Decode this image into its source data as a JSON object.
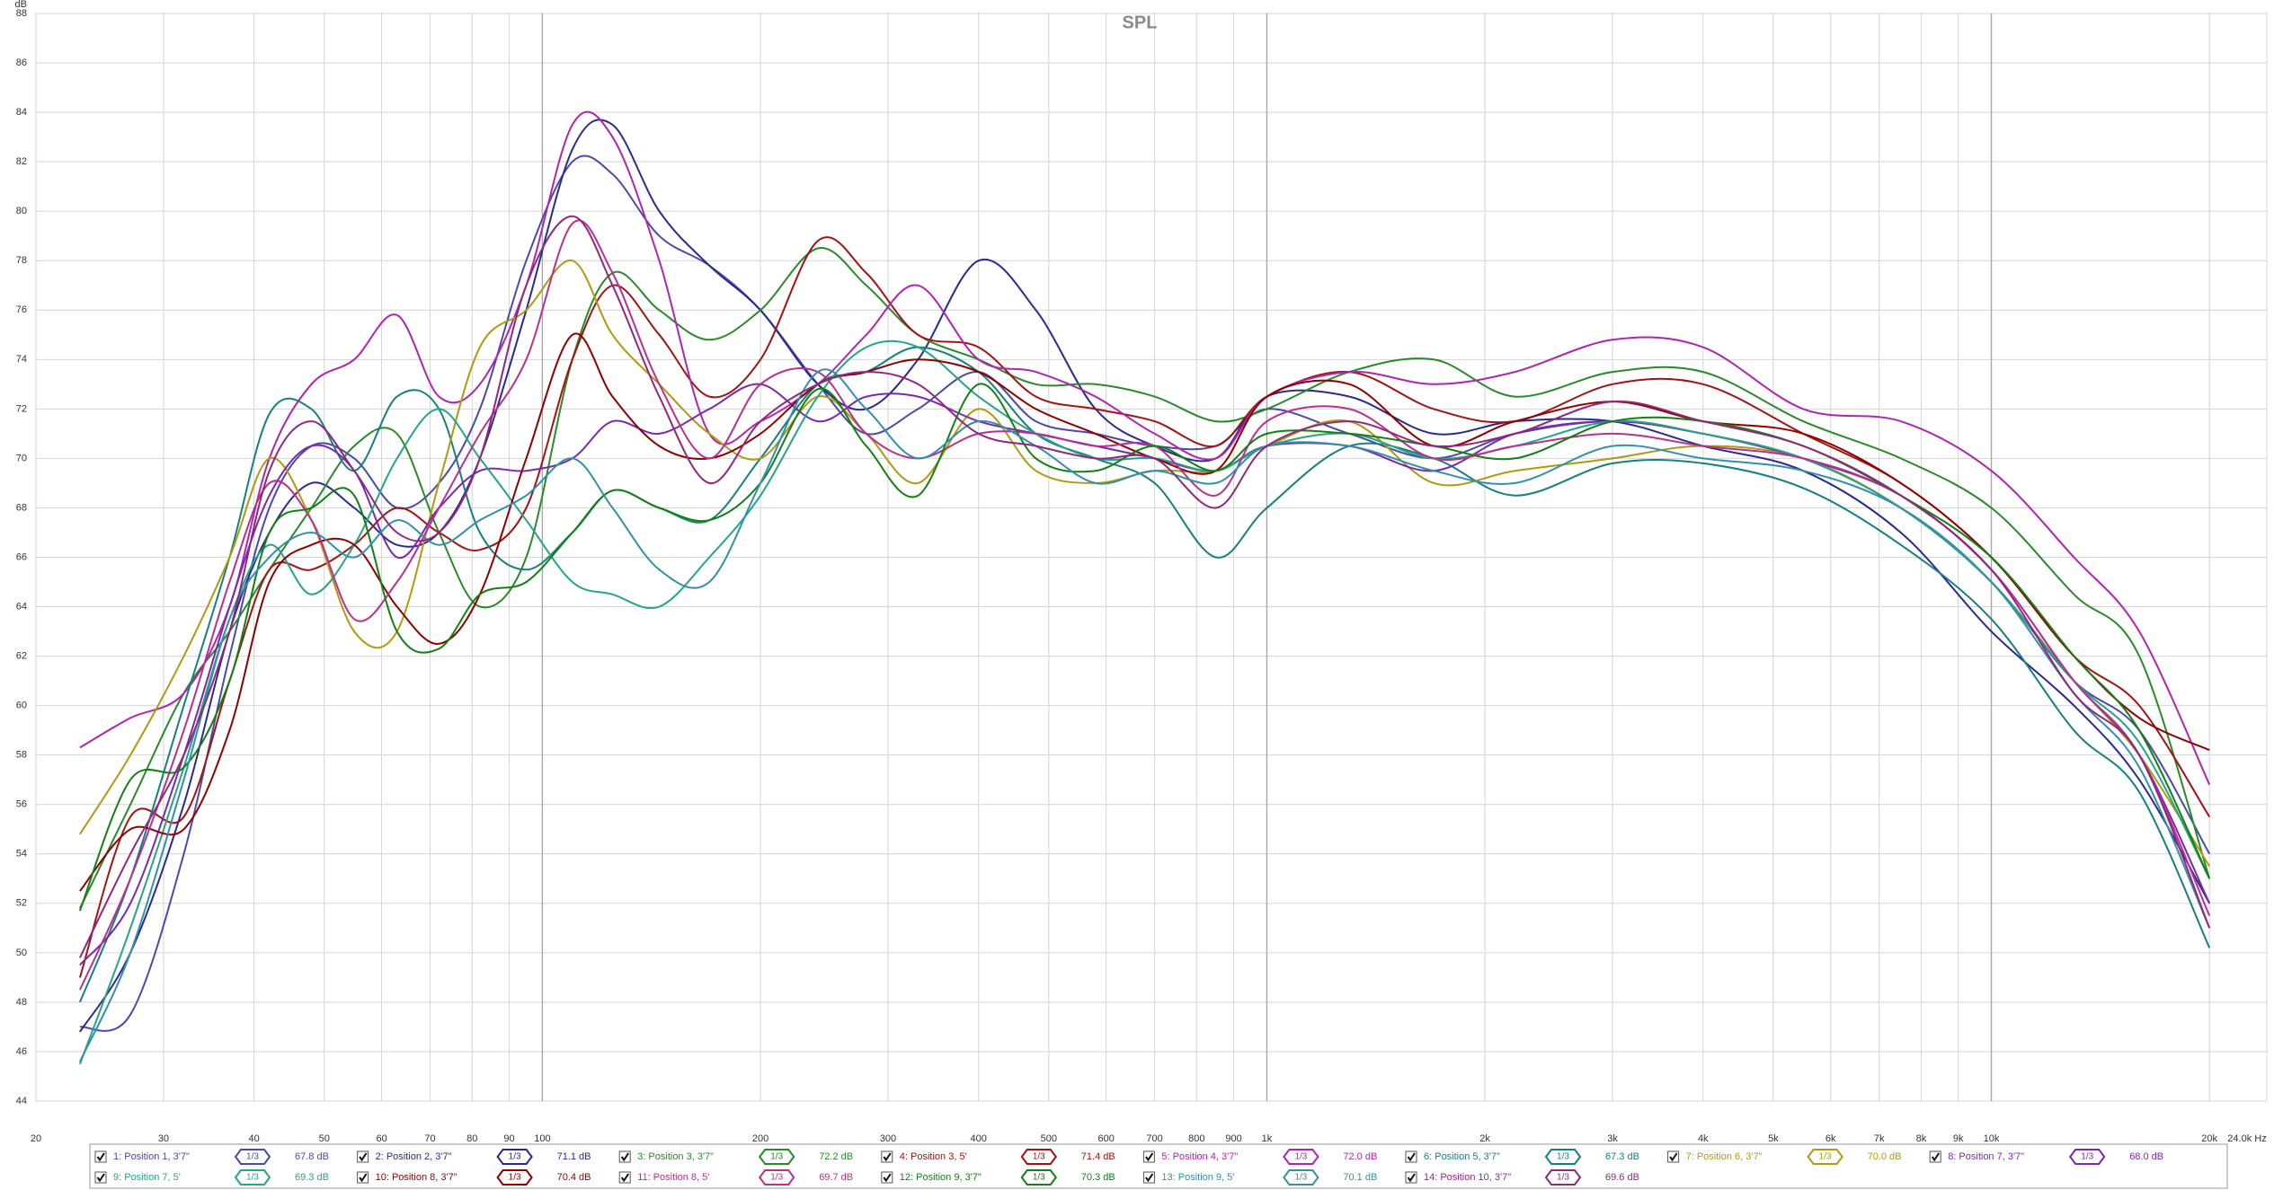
{
  "chart_data": {
    "type": "line",
    "title": "SPL",
    "y_label": "dB",
    "x_scale": "log",
    "grid": true,
    "xlim": [
      20,
      24000
    ],
    "ylim": [
      44,
      88
    ],
    "xticks": [
      20,
      30,
      40,
      50,
      60,
      70,
      80,
      90,
      100,
      200,
      300,
      400,
      500,
      600,
      700,
      800,
      900,
      {
        "value": 1000,
        "label": "1k"
      },
      {
        "value": 2000,
        "label": "2k"
      },
      {
        "value": 3000,
        "label": "3k"
      },
      {
        "value": 4000,
        "label": "4k"
      },
      {
        "value": 5000,
        "label": "5k"
      },
      {
        "value": 6000,
        "label": "6k"
      },
      {
        "value": 7000,
        "label": "7k"
      },
      {
        "value": 8000,
        "label": "8k"
      },
      {
        "value": 9000,
        "label": "9k"
      },
      {
        "value": 10000,
        "label": "10k"
      },
      {
        "value": 20000,
        "label": "20k"
      },
      {
        "value": 24000,
        "label": "24.0k Hz"
      }
    ],
    "yticks": [
      44,
      46,
      48,
      50,
      52,
      54,
      56,
      58,
      60,
      62,
      64,
      66,
      68,
      70,
      72,
      74,
      76,
      78,
      80,
      82,
      84,
      86,
      88
    ],
    "x": [
      23,
      27,
      32,
      37,
      42,
      48,
      55,
      63,
      72,
      82,
      95,
      110,
      125,
      145,
      170,
      200,
      240,
      280,
      330,
      400,
      480,
      580,
      700,
      850,
      1000,
      1300,
      1700,
      2200,
      3000,
      4000,
      5500,
      7500,
      10000,
      13000,
      16000,
      20000
    ],
    "series": [
      {
        "name": "1: Position 1, 3'7\"",
        "color": "#4a4aa8",
        "smoothing": "1/3",
        "level": "67.8 dB",
        "values": [
          47,
          47.5,
          54,
          62,
          68,
          70.5,
          70,
          68,
          69,
          72,
          78,
          82,
          81.5,
          79,
          77.8,
          76,
          73,
          71,
          72,
          73.5,
          71.5,
          71,
          70.5,
          70.5,
          72,
          71,
          70,
          71,
          71.5,
          71,
          70,
          68,
          65,
          61,
          59,
          54
        ]
      },
      {
        "name": "2: Position 2, 3'7\"",
        "color": "#2a2a90",
        "smoothing": "1/3",
        "level": "71.1 dB",
        "values": [
          46.8,
          50,
          56,
          63,
          67,
          69,
          68,
          66.5,
          67,
          70,
          76,
          82.5,
          83.5,
          80,
          77.8,
          76,
          73,
          72,
          74,
          78,
          76,
          72,
          70.5,
          70,
          72.5,
          72.5,
          71,
          71.5,
          71.5,
          70.5,
          69.5,
          67,
          63,
          60,
          57,
          52
        ]
      },
      {
        "name": "3: Position 3, 3'7\"",
        "color": "#2a8a2a",
        "smoothing": "1/3",
        "level": "72.2 dB",
        "values": [
          51.8,
          56,
          60.5,
          63,
          65.5,
          68,
          70.5,
          71,
          67,
          64,
          66,
          74,
          77.5,
          76,
          74.8,
          76,
          78.5,
          77,
          75,
          74,
          73,
          73,
          72.5,
          71.5,
          72,
          73.5,
          74,
          72.5,
          73.5,
          73.5,
          71.5,
          70,
          68,
          64.5,
          62,
          53
        ]
      },
      {
        "name": "4: Position 3, 5'",
        "color": "#a01414",
        "smoothing": "1/3",
        "level": "71.4 dB",
        "values": [
          49,
          55.5,
          55.5,
          61,
          65.5,
          65.5,
          66.5,
          68,
          67,
          66.3,
          68,
          74,
          77,
          75,
          72.5,
          74,
          78.8,
          77.5,
          75,
          74.5,
          72.5,
          72,
          71.5,
          70.5,
          72.5,
          73.5,
          72,
          71.5,
          73,
          73,
          71,
          69,
          66,
          62,
          60,
          55.5
        ]
      },
      {
        "name": "5: Position 4, 3'7\"",
        "color": "#b025b0",
        "smoothing": "1/3",
        "level": "72.0 dB",
        "values": [
          58.3,
          59.5,
          60.5,
          64,
          70,
          73,
          74,
          75.8,
          72.5,
          73,
          77,
          83.5,
          83,
          78,
          71,
          71.5,
          73,
          75,
          77,
          74,
          73.5,
          72.5,
          71,
          70,
          72.5,
          73.5,
          73,
          73.5,
          74.8,
          74.5,
          72,
          71.5,
          69.5,
          66,
          63,
          56.8
        ]
      },
      {
        "name": "6: Position 5, 3'7\"",
        "color": "#168080",
        "smoothing": "1/3",
        "level": "67.3 dB",
        "values": [
          48,
          53,
          60,
          66,
          71.8,
          72,
          69.5,
          72.5,
          72,
          67,
          65.5,
          67,
          68.7,
          68,
          67.5,
          70,
          73,
          73.5,
          74.5,
          73.5,
          71,
          70,
          69,
          66,
          68,
          70.5,
          70,
          68.5,
          69.8,
          69.8,
          68.8,
          66.5,
          63.5,
          59,
          56.5,
          50.2
        ]
      },
      {
        "name": "7: Position 6, 3'7\"",
        "color": "#b09a10",
        "smoothing": "1/3",
        "level": "70.0 dB",
        "values": [
          54.8,
          58,
          62,
          66,
          70,
          67.5,
          63,
          63,
          69,
          74.5,
          76,
          78,
          75,
          73,
          71,
          70,
          72.5,
          71,
          69,
          72,
          69.5,
          69,
          69.5,
          69.5,
          70.5,
          71.5,
          69,
          69.5,
          70,
          70.5,
          70,
          68,
          65,
          61,
          58,
          53.5
        ]
      },
      {
        "name": "8: Position 7, 3'7\"",
        "color": "#7a28b0",
        "smoothing": "1/3",
        "level": "68.0 dB",
        "values": [
          49.5,
          52,
          58,
          64,
          68.5,
          70.5,
          69.5,
          66,
          68,
          69.5,
          69.5,
          70,
          71.5,
          71,
          72,
          73,
          71.5,
          72.5,
          72.5,
          71.5,
          71,
          70.5,
          70,
          69.5,
          70.5,
          70.5,
          69.5,
          71,
          71.5,
          71,
          70,
          68.5,
          65.5,
          61,
          58,
          52
        ]
      },
      {
        "name": "9: Position 7, 5'",
        "color": "#25a585",
        "smoothing": "1/3",
        "level": "69.3 dB",
        "values": [
          45.5,
          51,
          57.5,
          63.5,
          66.5,
          64.5,
          66.5,
          70,
          72,
          70,
          67.5,
          65,
          64.5,
          64,
          66,
          68.5,
          72.5,
          74.5,
          74.5,
          72.5,
          71,
          70,
          70,
          69.5,
          70.5,
          71,
          70,
          70.5,
          71.5,
          71,
          70,
          68,
          65,
          61,
          58.5,
          53
        ]
      },
      {
        "name": "10: Position 8, 3'7\"",
        "color": "#900000",
        "smoothing": "1/3",
        "level": "70.4 dB",
        "values": [
          52.5,
          55,
          55,
          59,
          65,
          66.5,
          66.5,
          64,
          62.5,
          64.5,
          70,
          75,
          72.5,
          70.5,
          70,
          71,
          73,
          73.5,
          74,
          73.5,
          72,
          71,
          70,
          69.5,
          72.5,
          73,
          70.5,
          71.5,
          72.3,
          71.5,
          71,
          69,
          66,
          62,
          59.5,
          58.2
        ]
      },
      {
        "name": "11: Position 8, 5'",
        "color": "#b83090",
        "smoothing": "1/3",
        "level": "69.7 dB",
        "values": [
          48.5,
          53,
          59,
          65,
          69,
          67.5,
          63.5,
          65,
          68,
          71,
          74,
          79.5,
          77.5,
          73,
          70,
          73,
          73.5,
          71,
          70,
          71,
          71,
          70.5,
          70.5,
          68.5,
          71.5,
          72,
          70,
          70.5,
          71,
          70.5,
          70,
          68.5,
          65.5,
          61,
          58,
          51.5
        ]
      },
      {
        "name": "12: Position 9, 3'7\"",
        "color": "#148014",
        "smoothing": "1/3",
        "level": "70.3 dB",
        "values": [
          51.7,
          57,
          57.5,
          61,
          67,
          68,
          68.5,
          63,
          62.3,
          64.5,
          65,
          67,
          68.7,
          68,
          67.5,
          69,
          72.8,
          70.5,
          68.5,
          73,
          70,
          69.5,
          70.5,
          69.5,
          71,
          71,
          70.5,
          70,
          71.5,
          71.5,
          70.5,
          68.5,
          66,
          62,
          59,
          53
        ]
      },
      {
        "name": "13: Position 9, 5'",
        "color": "#3390aa",
        "smoothing": "1/3",
        "level": "70.1 dB",
        "values": [
          45.6,
          50,
          57,
          63.5,
          66,
          67,
          66,
          67.5,
          66.5,
          67.5,
          68.5,
          70,
          68,
          65.5,
          65,
          69,
          73.5,
          72,
          70,
          71.5,
          70.5,
          69,
          69.5,
          69,
          70.5,
          70.5,
          69.5,
          69,
          70.5,
          70,
          69.5,
          68,
          65,
          60.5,
          57.5,
          51
        ]
      },
      {
        "name": "14: Position 10, 3'7\"",
        "color": "#902880",
        "smoothing": "1/3",
        "level": "69.6 dB",
        "values": [
          49.8,
          54,
          58,
          63,
          69.5,
          71.5,
          69.5,
          67,
          67,
          70,
          77,
          79.8,
          77,
          72.5,
          69,
          71.5,
          73,
          73.5,
          73,
          71,
          70.5,
          70,
          70,
          68,
          70.5,
          71.5,
          70.5,
          71,
          72.3,
          71.5,
          70.5,
          68.5,
          65.5,
          60.5,
          58,
          51
        ]
      }
    ]
  }
}
